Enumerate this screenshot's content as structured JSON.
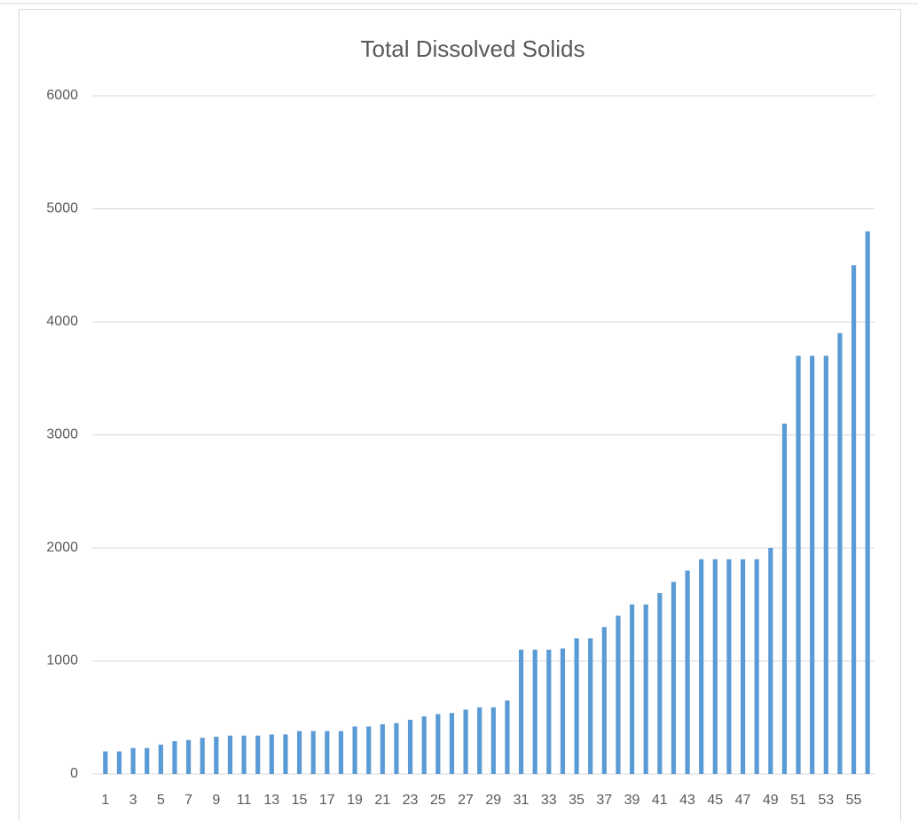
{
  "chart_data": {
    "type": "bar",
    "title": "Total Dissolved Solids",
    "categories": [
      "1",
      null,
      "3",
      null,
      "5",
      null,
      "7",
      null,
      "9",
      null,
      "11",
      null,
      "13",
      null,
      "15",
      null,
      "17",
      null,
      "19",
      null,
      "21",
      null,
      "23",
      null,
      "25",
      null,
      "27",
      null,
      "29",
      null,
      "31",
      null,
      "33",
      null,
      "35",
      null,
      "37",
      null,
      "39",
      null,
      "41",
      null,
      "43",
      null,
      "45",
      null,
      "47",
      null,
      "49",
      null,
      "51",
      null,
      "53",
      null,
      "55",
      null
    ],
    "values": [
      200,
      200,
      230,
      230,
      260,
      290,
      300,
      320,
      330,
      340,
      340,
      340,
      350,
      350,
      380,
      380,
      380,
      380,
      420,
      420,
      440,
      450,
      480,
      510,
      530,
      540,
      570,
      590,
      590,
      650,
      1100,
      1100,
      1100,
      1110,
      1200,
      1200,
      1300,
      1400,
      1500,
      1500,
      1600,
      1700,
      1800,
      1900,
      1900,
      1900,
      1900,
      1900,
      2000,
      3100,
      3700,
      3700,
      3700,
      3900,
      4500,
      4800
    ],
    "color": "#5b9bd5",
    "ylim": [
      0,
      6000
    ],
    "yticks": [
      0,
      1000,
      2000,
      3000,
      4000,
      5000,
      6000
    ],
    "grid": true
  }
}
